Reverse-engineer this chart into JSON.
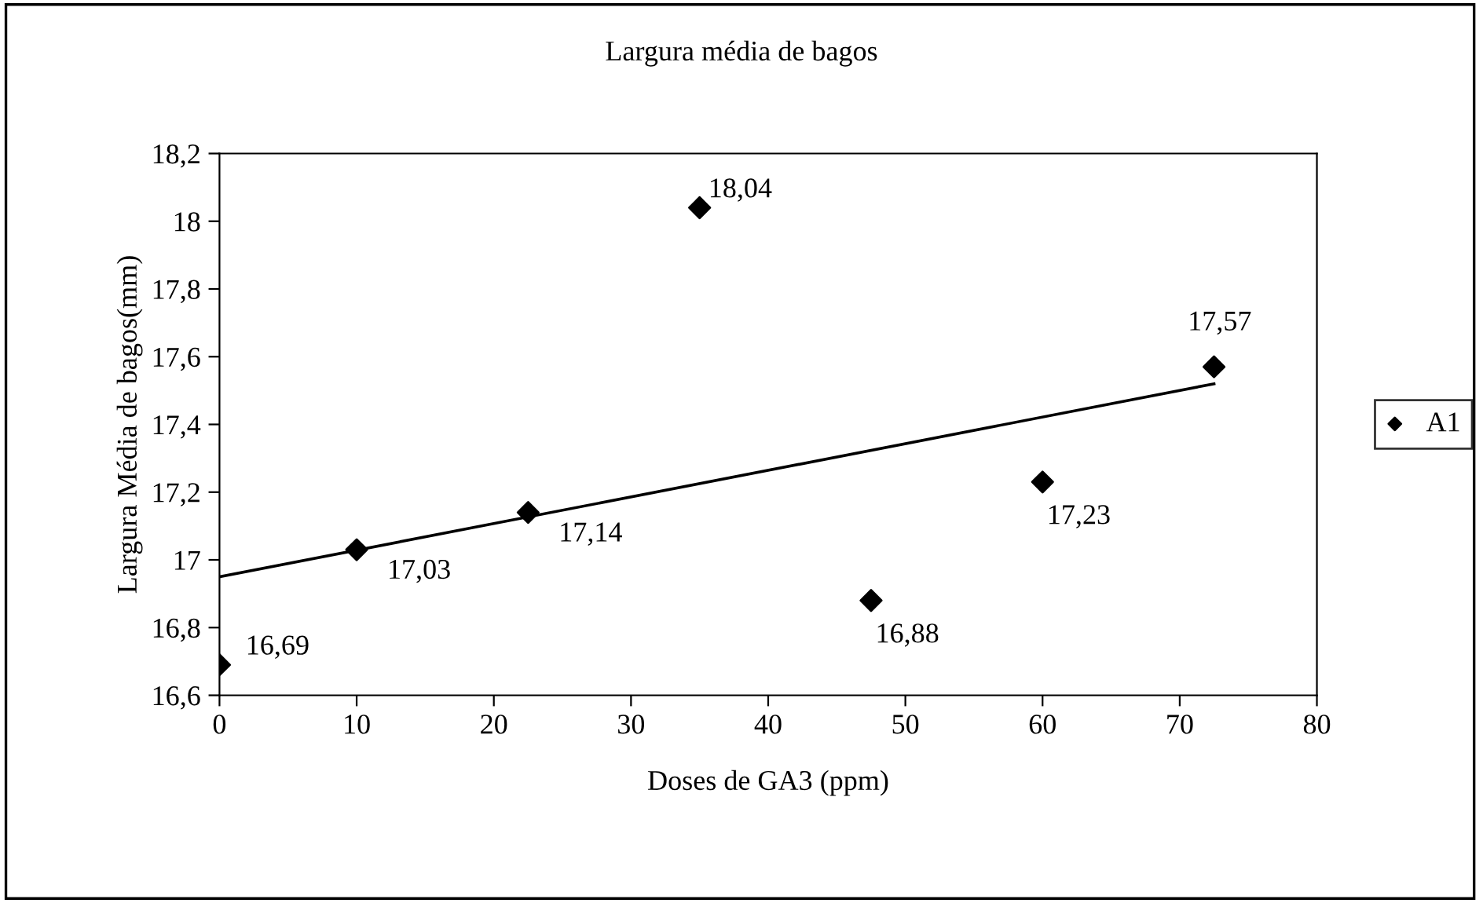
{
  "chart_data": {
    "type": "scatter",
    "title": "Largura média de bagos",
    "xlabel": "Doses de GA3 (ppm)",
    "ylabel": "Largura Média de bagos(mm)",
    "xlim": [
      0,
      80
    ],
    "xticks": [
      0,
      10,
      20,
      30,
      40,
      50,
      60,
      70,
      80
    ],
    "ylim": [
      16.6,
      18.2
    ],
    "yticks": [
      {
        "value": 16.6,
        "label": "16,6"
      },
      {
        "value": 16.8,
        "label": "16,8"
      },
      {
        "value": 17,
        "label": "17"
      },
      {
        "value": 17.2,
        "label": "17,2"
      },
      {
        "value": 17.4,
        "label": "17,4"
      },
      {
        "value": 17.6,
        "label": "17,6"
      },
      {
        "value": 17.8,
        "label": "17,8"
      },
      {
        "value": 18,
        "label": "18"
      },
      {
        "value": 18.2,
        "label": "18,2"
      }
    ],
    "series": [
      {
        "name": "A1",
        "color": "#000000",
        "marker": "diamond",
        "x": [
          0,
          10,
          22.5,
          35,
          47.5,
          60,
          72.5
        ],
        "values": [
          16.69,
          17.03,
          17.14,
          18.04,
          16.88,
          17.23,
          17.57
        ],
        "value_labels": [
          "16,69",
          "17,03",
          "17,14",
          "18,04",
          "16,88",
          "17,23",
          "17,57"
        ]
      },
      {
        "type": "line",
        "color": "#000000",
        "line_style": "solid",
        "marker": "none",
        "x": [
          0,
          72.5
        ],
        "values": [
          16.95,
          17.52
        ]
      }
    ],
    "grid": false,
    "legend": "right"
  }
}
